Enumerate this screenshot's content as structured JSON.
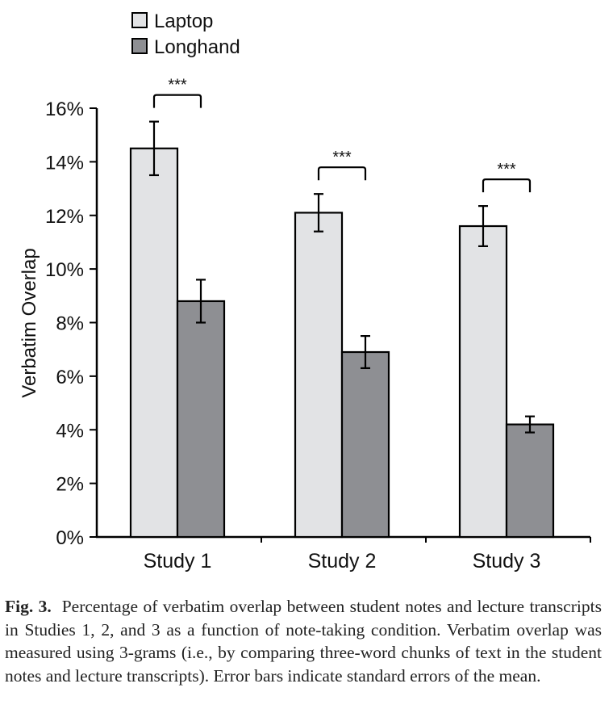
{
  "chart_data": {
    "type": "bar",
    "title": "",
    "xlabel": "",
    "ylabel": "Verbatim Overlap",
    "ylim": [
      0,
      16
    ],
    "yticks": [
      0,
      2,
      4,
      6,
      8,
      10,
      12,
      14,
      16
    ],
    "ytick_labels": [
      "0%",
      "2%",
      "4%",
      "6%",
      "8%",
      "10%",
      "12%",
      "14%",
      "16%"
    ],
    "categories": [
      "Study 1",
      "Study 2",
      "Study 3"
    ],
    "series": [
      {
        "name": "Laptop",
        "color": "#e2e3e5",
        "values": [
          14.5,
          12.1,
          11.6
        ],
        "error": [
          1.0,
          0.7,
          0.75
        ]
      },
      {
        "name": "Longhand",
        "color": "#8e8f93",
        "values": [
          8.8,
          6.9,
          4.2
        ],
        "error": [
          0.8,
          0.6,
          0.3
        ]
      }
    ],
    "significance": [
      "***",
      "***",
      "***"
    ],
    "legend": {
      "placement": "top-center",
      "entries": [
        "Laptop",
        "Longhand"
      ]
    },
    "grid": false
  },
  "caption": {
    "label": "Fig. 3.",
    "text": "Percentage of verbatim overlap between student notes and lecture transcripts in Studies 1, 2, and 3 as a function of note-taking condition. Verbatim overlap was measured using 3-grams (i.e., by comparing three-word chunks of text in the student notes and lecture transcripts). Error bars indicate standard errors of the mean."
  }
}
